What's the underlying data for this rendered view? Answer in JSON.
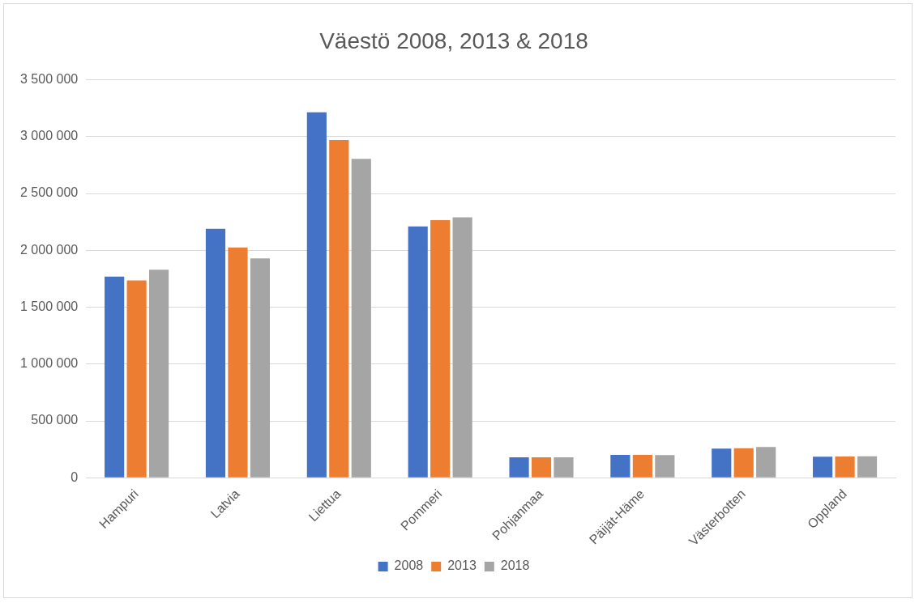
{
  "chart_data": {
    "type": "bar",
    "title": "Väestö 2008, 2013 & 2018",
    "categories": [
      "Hampuri",
      "Latvia",
      "Liettua",
      "Pommeri",
      "Pohjanmaa",
      "Päijät-Häme",
      "Västerbotten",
      "Oppland"
    ],
    "series": [
      {
        "name": "2008",
        "color": "#4472c4",
        "values": [
          1770000,
          2190000,
          3215000,
          2210000,
          180000,
          202000,
          257000,
          185000
        ]
      },
      {
        "name": "2013",
        "color": "#ed7d31",
        "values": [
          1735000,
          2025000,
          2970000,
          2265000,
          180000,
          201000,
          260000,
          187000
        ]
      },
      {
        "name": "2018",
        "color": "#a5a5a5",
        "values": [
          1830000,
          1930000,
          2805000,
          2290000,
          180000,
          200000,
          270000,
          189000
        ]
      }
    ],
    "ylim": [
      0,
      3500000
    ],
    "yticks": [
      {
        "value": 0,
        "label": "0"
      },
      {
        "value": 500000,
        "label": "500 000"
      },
      {
        "value": 1000000,
        "label": "1 000 000"
      },
      {
        "value": 1500000,
        "label": "1 500 000"
      },
      {
        "value": 2000000,
        "label": "2 000 000"
      },
      {
        "value": 2500000,
        "label": "2 500 000"
      },
      {
        "value": 3000000,
        "label": "3 000 000"
      },
      {
        "value": 3500000,
        "label": "3 500 000"
      }
    ],
    "grid": "y",
    "legend": "bottom"
  }
}
